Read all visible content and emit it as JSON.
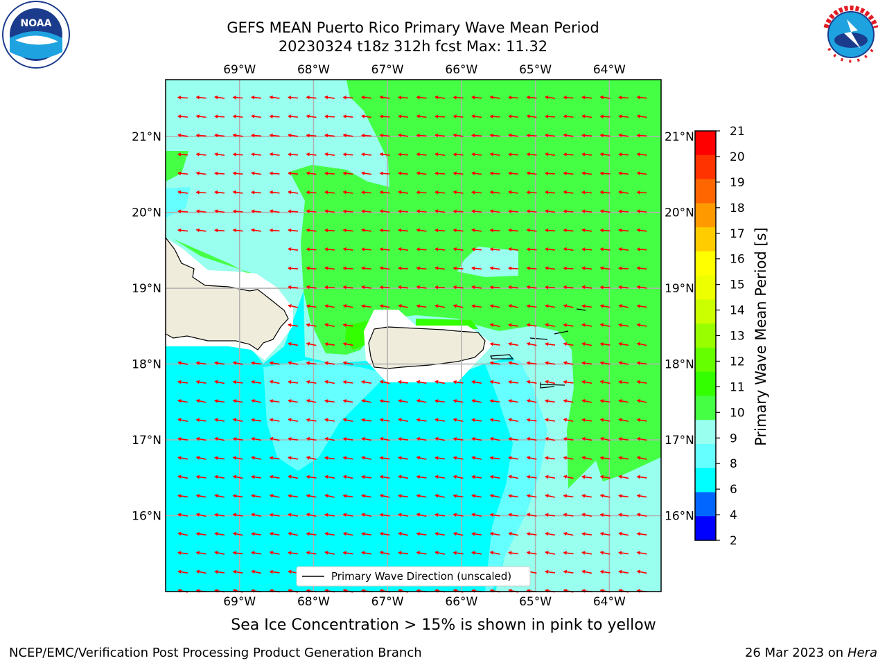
{
  "title": {
    "line1": "GEFS MEAN Puerto Rico Primary Wave Mean Period",
    "line2": "20230324 t18z 312h fcst   Max: 11.32"
  },
  "logos": {
    "left": "noaa-logo",
    "right": "nws-logo"
  },
  "map": {
    "lon_labels": [
      "69°W",
      "68°W",
      "67°W",
      "66°W",
      "65°W",
      "64°W"
    ],
    "lat_labels": [
      "21°N",
      "20°N",
      "19°N",
      "18°N",
      "17°N",
      "16°N"
    ],
    "lon_values": [
      -69,
      -68,
      -67,
      -66,
      -65,
      -64
    ],
    "lat_values": [
      21,
      20,
      19,
      18,
      17,
      16
    ],
    "lon_range": [
      -70,
      -63.3
    ],
    "lat_range": [
      15,
      21.75
    ],
    "arrow_color": "#ff0000",
    "arrow_direction": "westward",
    "legend_label": "Primary Wave Direction (unscaled)"
  },
  "colorbar": {
    "title": "Primary Wave Mean Period [s]",
    "ticks": [
      "2",
      "4",
      "6",
      "8",
      "9",
      "10",
      "11",
      "12",
      "13",
      "14",
      "15",
      "16",
      "17",
      "18",
      "19",
      "20",
      "21"
    ],
    "colors": [
      "#0000ff",
      "#0066ff",
      "#00ffff",
      "#66ffff",
      "#99ffee",
      "#44ff44",
      "#33ff00",
      "#66ff00",
      "#99ff00",
      "#ccff00",
      "#eeff00",
      "#ffff00",
      "#ffcc00",
      "#ff9900",
      "#ff6600",
      "#ff3300",
      "#ff0000"
    ]
  },
  "note": "Sea Ice Concentration > 15% is shown in pink to yellow",
  "footer": {
    "left": "NCEP/EMC/Verification Post Processing Product Generation Branch",
    "right_date": "26 Mar 2023 on",
    "right_machine": "Hera"
  }
}
